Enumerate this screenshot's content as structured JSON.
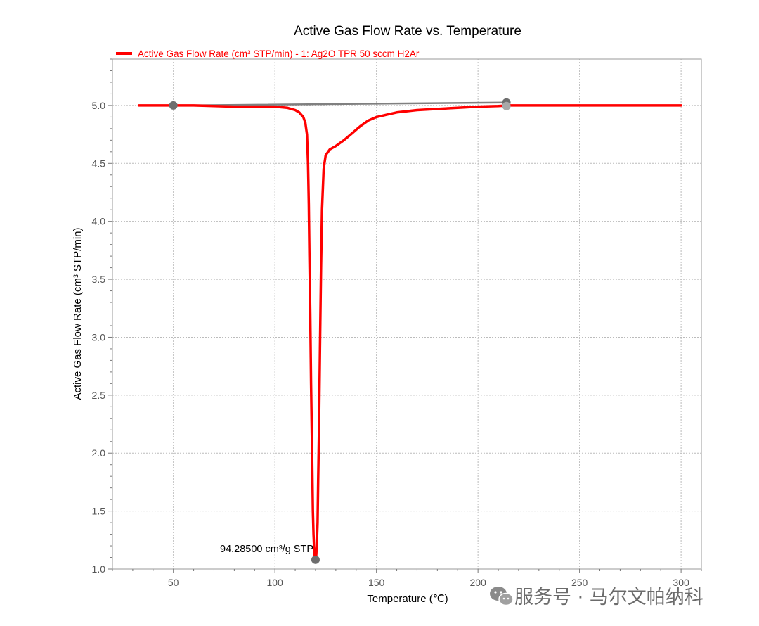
{
  "chart_data": {
    "type": "line",
    "title": "Active Gas Flow Rate vs. Temperature",
    "xlabel": "Temperature (℃)",
    "ylabel": "Active Gas Flow Rate (cm³ STP/min)",
    "xlim": [
      20,
      310
    ],
    "ylim": [
      1.0,
      5.4
    ],
    "x_ticks": [
      50,
      100,
      150,
      200,
      250,
      300
    ],
    "y_ticks": [
      1.0,
      1.5,
      2.0,
      2.5,
      3.0,
      3.5,
      4.0,
      4.5,
      5.0
    ],
    "grid": true,
    "legend_position": "top-left",
    "series": [
      {
        "name": "Active Gas Flow Rate (cm³ STP/min) - 1: Ag2O TPR 50 sccm H2Ar",
        "color": "#ff0000",
        "x": [
          33,
          60,
          80,
          100,
          106,
          110,
          112,
          114,
          115,
          115.8,
          116.3,
          116.7,
          117,
          117.4,
          117.8,
          118.3,
          118.7,
          119,
          119.4,
          119.7,
          120,
          120.3,
          120.6,
          121,
          121.3,
          121.7,
          122.2,
          122.7,
          123.2,
          124,
          125,
          127,
          130,
          134,
          138,
          142,
          146,
          150,
          155,
          160,
          170,
          180,
          190,
          200,
          210,
          215,
          220,
          250,
          300
        ],
        "y": [
          5.0,
          5.0,
          4.99,
          4.99,
          4.98,
          4.96,
          4.94,
          4.9,
          4.85,
          4.75,
          4.5,
          4.15,
          3.7,
          3.2,
          2.6,
          2.0,
          1.5,
          1.3,
          1.15,
          1.09,
          1.08,
          1.1,
          1.2,
          1.4,
          1.75,
          2.2,
          2.9,
          3.6,
          4.1,
          4.45,
          4.57,
          4.62,
          4.65,
          4.7,
          4.76,
          4.82,
          4.87,
          4.9,
          4.92,
          4.94,
          4.96,
          4.97,
          4.98,
          4.99,
          4.995,
          5.0,
          5.0,
          5.0,
          5.0
        ]
      },
      {
        "name": "",
        "color": "#808080",
        "x": [
          50,
          214
        ],
        "y": [
          5.0,
          5.025
        ]
      }
    ],
    "markers": [
      {
        "x": 50,
        "y": 5.0,
        "color": "#6e6e6e"
      },
      {
        "x": 214,
        "y": 5.025,
        "color": "#6e6e6e"
      },
      {
        "x": 214,
        "y": 4.995,
        "color": "#a8a8a8"
      },
      {
        "x": 120,
        "y": 1.08,
        "color": "#6e6e6e"
      }
    ],
    "annotations": [
      {
        "text": "94.28500 cm³/g STP",
        "x": 120,
        "y": 1.08
      }
    ]
  },
  "watermark": {
    "text": "服务号 · 马尔文帕纳科",
    "icon": "wechat-icon"
  }
}
